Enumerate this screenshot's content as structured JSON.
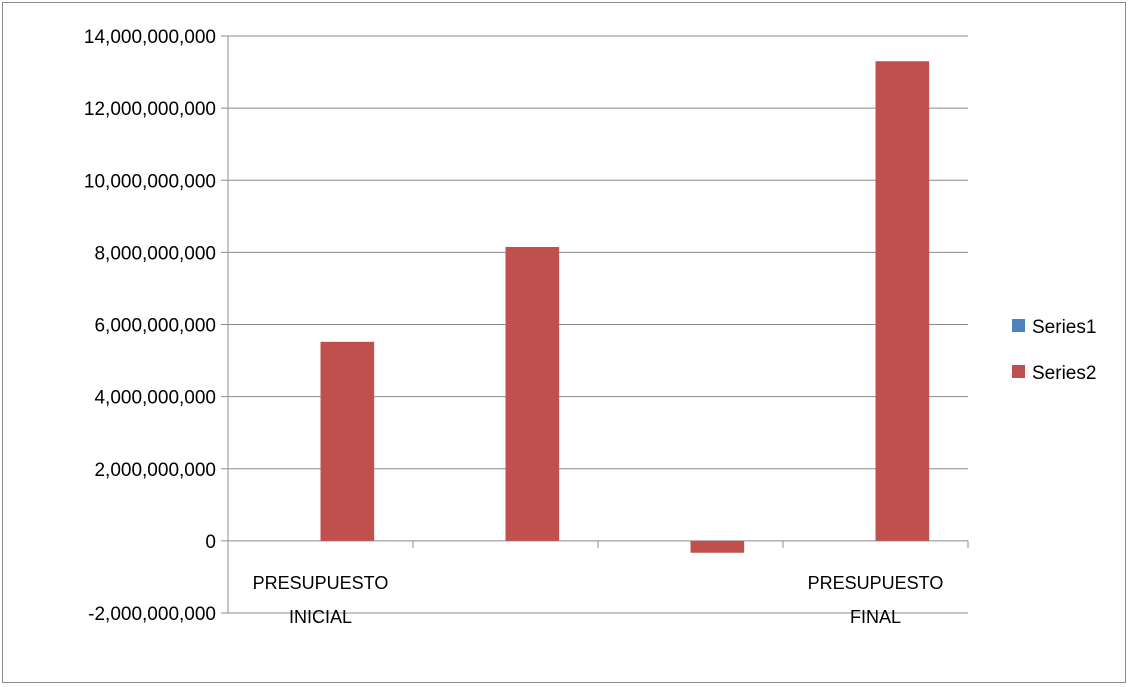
{
  "chart_data": {
    "type": "bar",
    "categories": [
      [
        "PRESUPUESTO",
        "INICIAL"
      ],
      [
        "",
        ""
      ],
      [
        "",
        ""
      ],
      [
        "PRESUPUESTO",
        "FINAL"
      ]
    ],
    "series": [
      {
        "name": "Series1",
        "color": "#4f81bd",
        "values": [
          0,
          0,
          0,
          0
        ]
      },
      {
        "name": "Series2",
        "color": "#c0504d",
        "values": [
          5520000000,
          8150000000,
          -330000000,
          13300000000
        ]
      }
    ],
    "ylim": [
      -2000000000,
      14000000000
    ],
    "yticks": [
      {
        "value": 14000000000,
        "label": "14,000,000,000"
      },
      {
        "value": 12000000000,
        "label": "12,000,000,000"
      },
      {
        "value": 10000000000,
        "label": "10,000,000,000"
      },
      {
        "value": 8000000000,
        "label": "8,000,000,000"
      },
      {
        "value": 6000000000,
        "label": "6,000,000,000"
      },
      {
        "value": 4000000000,
        "label": "4,000,000,000"
      },
      {
        "value": 2000000000,
        "label": "2,000,000,000"
      },
      {
        "value": 0,
        "label": "0"
      },
      {
        "value": -2000000000,
        "label": "-2,000,000,000"
      }
    ],
    "grid": true,
    "legend": "right",
    "title": "",
    "xlabel": "",
    "ylabel": ""
  }
}
